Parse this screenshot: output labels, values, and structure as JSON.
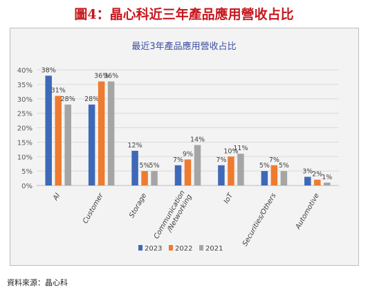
{
  "figure": {
    "title": "圖4：晶心科近三年產品應用營收占比",
    "source": "資料來源：晶心科"
  },
  "colors": {
    "title_red": "#c8161d",
    "chart_title_blue": "#3b4da3",
    "series": [
      "#3e69b8",
      "#ee7b30",
      "#a5a5a5"
    ]
  },
  "chart_data": {
    "type": "bar",
    "title": "最近3年產品應用營收占比",
    "categories": [
      "AI",
      "Customer",
      "Storage",
      "Communication /Networking",
      "IoT",
      "Securities/Others",
      "Automotive"
    ],
    "series": [
      {
        "name": "2023",
        "values": [
          38,
          28,
          12,
          7,
          7,
          5,
          3
        ]
      },
      {
        "name": "2022",
        "values": [
          31,
          36,
          5,
          9,
          10,
          7,
          2
        ]
      },
      {
        "name": "2021",
        "values": [
          28,
          36,
          5,
          14,
          11,
          5,
          1
        ]
      }
    ],
    "ylim": [
      0,
      40
    ],
    "yticks": [
      "0%",
      "5%",
      "10%",
      "15%",
      "20%",
      "25%",
      "30%",
      "35%",
      "40%"
    ],
    "value_suffix": "%",
    "grid": true,
    "legend_position": "bottom"
  }
}
